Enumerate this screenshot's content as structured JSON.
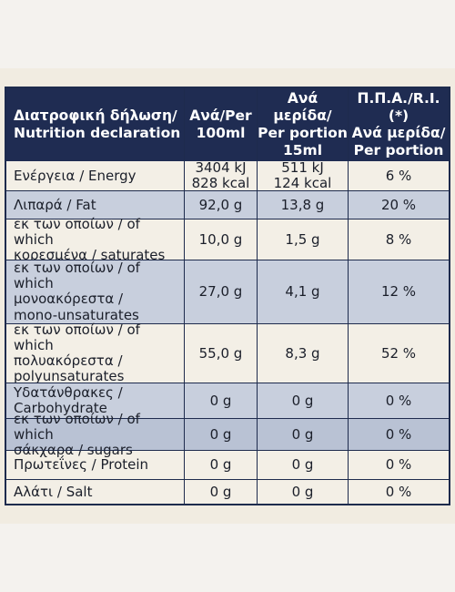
{
  "table": {
    "header": [
      [
        "Διατροφική δήλωση/",
        "Nutrition declaration"
      ],
      [
        "Ανά/Per",
        "100ml"
      ],
      [
        "Ανά μερίδα/",
        "Per portion",
        "15ml"
      ],
      [
        "Π.Π.Α./R.I.(*)",
        "Ανά μερίδα/",
        "Per portion"
      ]
    ],
    "rows": [
      [
        [
          "Ενέργεια / Energy"
        ],
        [
          "3404 kJ",
          "828 kcal"
        ],
        [
          "511 kJ",
          "124 kcal"
        ],
        [
          "6 %"
        ]
      ],
      [
        [
          "Λιπαρά / Fat"
        ],
        [
          "92,0 g"
        ],
        [
          "13,8 g"
        ],
        [
          "20 %"
        ]
      ],
      [
        [
          "εκ των οποίων / of which",
          "κορεσμένα / saturates"
        ],
        [
          "10,0 g"
        ],
        [
          "1,5 g"
        ],
        [
          "8 %"
        ]
      ],
      [
        [
          "εκ των οποίων / of which",
          "μονοακόρεστα /",
          "mono-unsaturates"
        ],
        [
          "27,0 g"
        ],
        [
          "4,1 g"
        ],
        [
          "12 %"
        ]
      ],
      [
        [
          "εκ των οποίων / of which",
          "πολυακόρεστα /",
          "polyunsaturates"
        ],
        [
          "55,0 g"
        ],
        [
          "8,3 g"
        ],
        [
          "52 %"
        ]
      ],
      [
        [
          "Υδατάνθρακες /",
          "Carbohydrate"
        ],
        [
          "0 g"
        ],
        [
          "0 g"
        ],
        [
          "0 %"
        ]
      ],
      [
        [
          "εκ των οποίων / of which",
          "σάκχαρα / sugars"
        ],
        [
          "0 g"
        ],
        [
          "0 g"
        ],
        [
          "0 %"
        ]
      ],
      [
        [
          "Πρωτεΐνες / Protein"
        ],
        [
          "0 g"
        ],
        [
          "0 g"
        ],
        [
          "0 %"
        ]
      ],
      [
        [
          "Αλάτι / Salt"
        ],
        [
          "0 g"
        ],
        [
          "0 g"
        ],
        [
          "0 %"
        ]
      ]
    ]
  }
}
